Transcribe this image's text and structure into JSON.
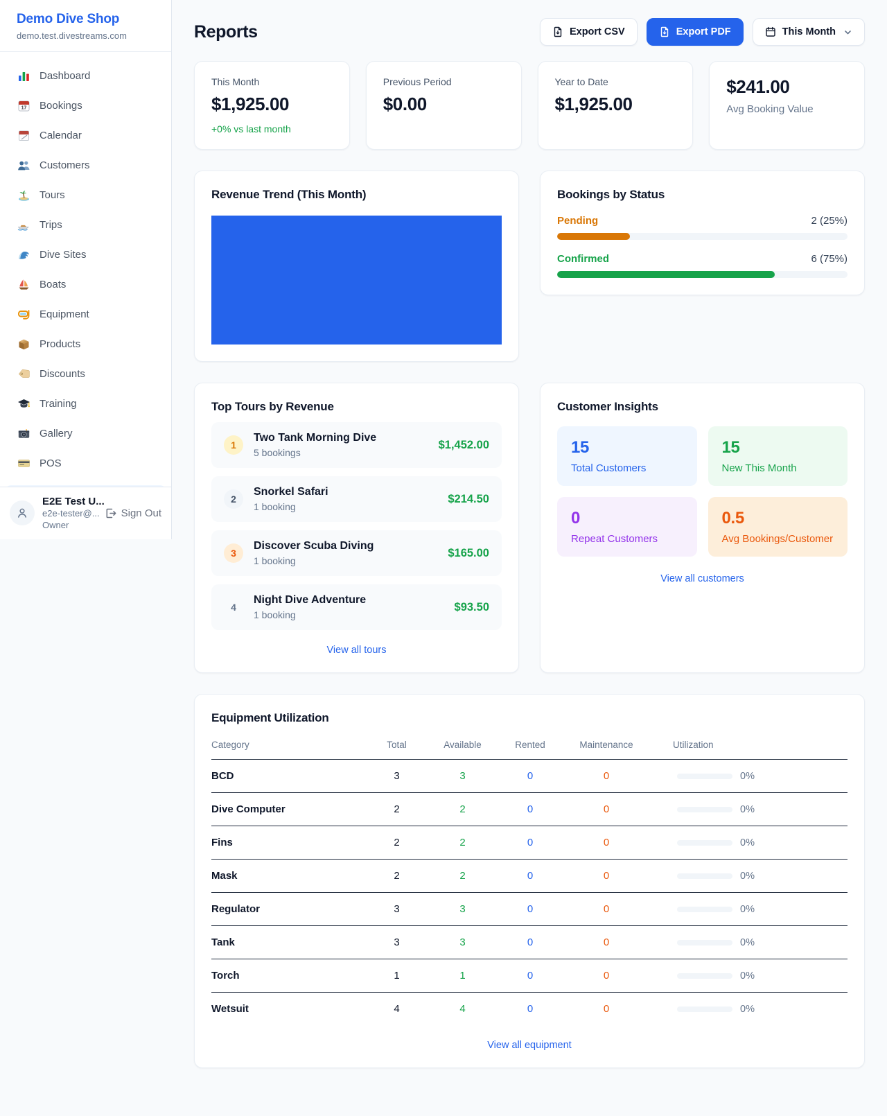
{
  "colors": {
    "accent": "#2563eb",
    "green": "#16a34a",
    "amber": "#d97706",
    "orange": "#ea580c",
    "purple": "#9333ea"
  },
  "sidebar": {
    "shop_name": "Demo Dive Shop",
    "domain": "demo.test.divestreams.com",
    "items": [
      {
        "icon": "bar-chart-icon",
        "label": "Dashboard"
      },
      {
        "icon": "calendar-17-icon",
        "label": "Bookings"
      },
      {
        "icon": "tear-calendar-icon",
        "label": "Calendar"
      },
      {
        "icon": "people-icon",
        "label": "Customers"
      },
      {
        "icon": "island-icon",
        "label": "Tours"
      },
      {
        "icon": "speedboat-icon",
        "label": "Trips"
      },
      {
        "icon": "wave-icon",
        "label": "Dive Sites"
      },
      {
        "icon": "sailboat-icon",
        "label": "Boats"
      },
      {
        "icon": "dive-mask-icon",
        "label": "Equipment"
      },
      {
        "icon": "package-icon",
        "label": "Products"
      },
      {
        "icon": "tag-icon",
        "label": "Discounts"
      },
      {
        "icon": "grad-cap-icon",
        "label": "Training"
      },
      {
        "icon": "camera-icon",
        "label": "Gallery"
      },
      {
        "icon": "credit-card-icon",
        "label": "POS"
      }
    ],
    "user": {
      "name": "E2E Test U...",
      "email": "e2e-tester@...",
      "role": "Owner",
      "sign_out": "Sign Out"
    }
  },
  "header": {
    "title": "Reports",
    "export_csv": "Export CSV",
    "export_pdf": "Export PDF",
    "period": "This Month"
  },
  "stats": [
    {
      "label": "This Month",
      "value": "$1,925.00",
      "delta": "+0% vs last month"
    },
    {
      "label": "Previous Period",
      "value": "$0.00"
    },
    {
      "label": "Year to Date",
      "value": "$1,925.00"
    },
    {
      "value": "$241.00",
      "label": "Avg Booking Value"
    }
  ],
  "revenue_trend": {
    "title": "Revenue Trend (This Month)",
    "bar_color": "#2563eb"
  },
  "bookings_by_status": {
    "title": "Bookings by Status",
    "rows": [
      {
        "label": "Pending",
        "count_text": "2 (25%)",
        "pct": 25
      },
      {
        "label": "Confirmed",
        "count_text": "6 (75%)",
        "pct": 75
      }
    ]
  },
  "top_tours": {
    "title": "Top Tours by Revenue",
    "rows": [
      {
        "rank": "1",
        "name": "Two Tank Morning Dive",
        "bookings": "5 bookings",
        "revenue": "$1,452.00"
      },
      {
        "rank": "2",
        "name": "Snorkel Safari",
        "bookings": "1 booking",
        "revenue": "$214.50"
      },
      {
        "rank": "3",
        "name": "Discover Scuba Diving",
        "bookings": "1 booking",
        "revenue": "$165.00"
      },
      {
        "rank": "4",
        "name": "Night Dive Adventure",
        "bookings": "1 booking",
        "revenue": "$93.50"
      }
    ],
    "link": "View all tours"
  },
  "customer_insights": {
    "title": "Customer Insights",
    "tiles": [
      {
        "value": "15",
        "label": "Total Customers"
      },
      {
        "value": "15",
        "label": "New This Month"
      },
      {
        "value": "0",
        "label": "Repeat Customers"
      },
      {
        "value": "0.5",
        "label": "Avg Bookings/Customer"
      }
    ],
    "link": "View all customers"
  },
  "equipment": {
    "title": "Equipment Utilization",
    "headers": [
      "Category",
      "Total",
      "Available",
      "Rented",
      "Maintenance",
      "Utilization"
    ],
    "rows": [
      {
        "category": "BCD",
        "total": "3",
        "available": "3",
        "rented": "0",
        "maintenance": "0",
        "utilization": "0%",
        "util_pct": 0
      },
      {
        "category": "Dive Computer",
        "total": "2",
        "available": "2",
        "rented": "0",
        "maintenance": "0",
        "utilization": "0%",
        "util_pct": 0
      },
      {
        "category": "Fins",
        "total": "2",
        "available": "2",
        "rented": "0",
        "maintenance": "0",
        "utilization": "0%",
        "util_pct": 0
      },
      {
        "category": "Mask",
        "total": "2",
        "available": "2",
        "rented": "0",
        "maintenance": "0",
        "utilization": "0%",
        "util_pct": 0
      },
      {
        "category": "Regulator",
        "total": "3",
        "available": "3",
        "rented": "0",
        "maintenance": "0",
        "utilization": "0%",
        "util_pct": 0
      },
      {
        "category": "Tank",
        "total": "3",
        "available": "3",
        "rented": "0",
        "maintenance": "0",
        "utilization": "0%",
        "util_pct": 0
      },
      {
        "category": "Torch",
        "total": "1",
        "available": "1",
        "rented": "0",
        "maintenance": "0",
        "utilization": "0%",
        "util_pct": 0
      },
      {
        "category": "Wetsuit",
        "total": "4",
        "available": "4",
        "rented": "0",
        "maintenance": "0",
        "utilization": "0%",
        "util_pct": 0
      }
    ],
    "link": "View all equipment"
  }
}
